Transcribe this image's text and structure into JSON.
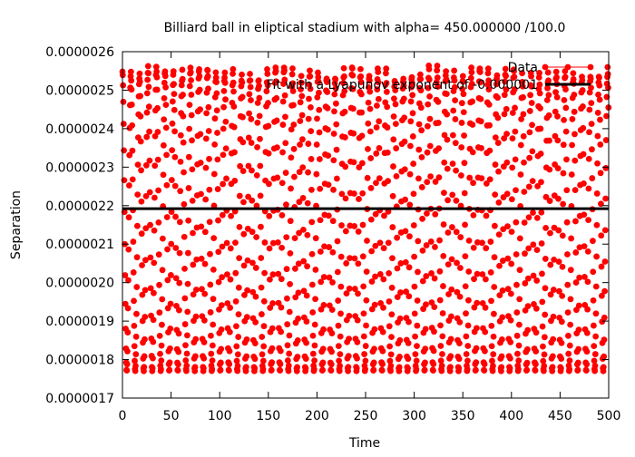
{
  "chart_data": {
    "type": "scatter",
    "title": "Billiard ball in eliptical stadium with alpha= 450.000000 /100.0",
    "xlabel": "Time",
    "ylabel": "Separation",
    "xlim": [
      0,
      500
    ],
    "ylim": [
      1.7e-06,
      2.6e-06
    ],
    "x_ticks": [
      0,
      50,
      100,
      150,
      200,
      250,
      300,
      350,
      400,
      450,
      500
    ],
    "x_tick_labels": [
      "0",
      "50",
      "100",
      "150",
      "200",
      "250",
      "300",
      "350",
      "400",
      "450",
      "500"
    ],
    "y_ticks": [
      1.7e-06,
      1.8e-06,
      1.9e-06,
      2e-06,
      2.1e-06,
      2.2e-06,
      2.3e-06,
      2.4e-06,
      2.5e-06,
      2.6e-06
    ],
    "y_tick_labels": [
      "0.0000017",
      "0.0000018",
      "0.0000019",
      "0.0000020",
      "0.0000021",
      "0.0000022",
      "0.0000023",
      "0.0000024",
      "0.0000025",
      "0.0000026"
    ],
    "grid": false,
    "legend_position": "top-right",
    "series": [
      {
        "name": "Data",
        "style": "points",
        "color": "#ff0000",
        "oscillation_period": 8.75,
        "y_min": 1.77e-06,
        "y_max_range": [
          2.49e-06,
          2.565e-06
        ],
        "x_range": [
          0,
          500
        ]
      },
      {
        "name": "Fit with a Lyapunov exponent of -0.000001",
        "style": "line",
        "color": "#000000",
        "y_value": 2.192e-06
      }
    ]
  }
}
